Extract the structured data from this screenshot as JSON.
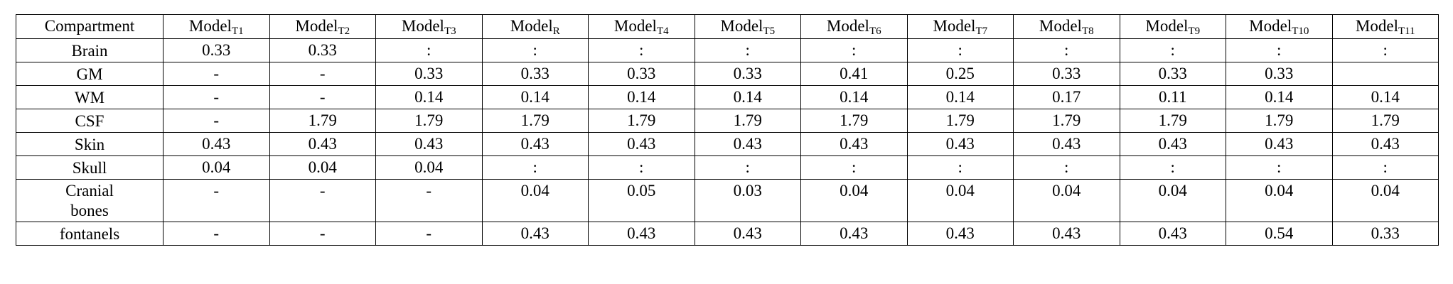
{
  "header": [
    {
      "base": "Compartment"
    },
    {
      "base": "Model",
      "sub": "T1"
    },
    {
      "base": "Model",
      "sub": "T2"
    },
    {
      "base": "Model",
      "sub": "T3"
    },
    {
      "base": "Model",
      "sub": "R"
    },
    {
      "base": "Model",
      "sub": "T4"
    },
    {
      "base": "Model",
      "sub": "T5"
    },
    {
      "base": "Model",
      "sub": "T6"
    },
    {
      "base": "Model",
      "sub": "T7"
    },
    {
      "base": "Model",
      "sub": "T8"
    },
    {
      "base": "Model",
      "sub": "T9"
    },
    {
      "base": "Model",
      "sub": "T10"
    },
    {
      "base": "Model",
      "sub": "T11"
    }
  ],
  "rows": [
    {
      "label": "Brain",
      "cells": [
        "0.33",
        "0.33",
        ":",
        ":",
        ":",
        ":",
        ":",
        ":",
        ":",
        ":",
        ":",
        ":"
      ]
    },
    {
      "label": "GM",
      "cells": [
        "-",
        "-",
        "0.33",
        "0.33",
        "0.33",
        "0.33",
        "0.41",
        "0.25",
        "0.33",
        "0.33",
        "0.33",
        null
      ]
    },
    {
      "label": "WM",
      "cells": [
        "-",
        "-",
        "0.14",
        "0.14",
        "0.14",
        "0.14",
        "0.14",
        "0.14",
        "0.17",
        "0.11",
        "0.14",
        "0.14"
      ]
    },
    {
      "label": "CSF",
      "cells": [
        "-",
        "1.79",
        "1.79",
        "1.79",
        "1.79",
        "1.79",
        "1.79",
        "1.79",
        "1.79",
        "1.79",
        "1.79",
        "1.79"
      ]
    },
    {
      "label": "Skin",
      "cells": [
        "0.43",
        "0.43",
        "0.43",
        "0.43",
        "0.43",
        "0.43",
        "0.43",
        "0.43",
        "0.43",
        "0.43",
        "0.43",
        "0.43"
      ]
    },
    {
      "label": "Skull",
      "cells": [
        "0.04",
        "0.04",
        "0.04",
        ":",
        ":",
        ":",
        ":",
        ":",
        ":",
        ":",
        ":",
        ":"
      ]
    },
    {
      "label": "Cranial bones",
      "cells": [
        "-",
        "-",
        "-",
        "0.04",
        "0.05",
        "0.03",
        "0.04",
        "0.04",
        "0.04",
        "0.04",
        "0.04",
        "0.04"
      ]
    },
    {
      "label": "fontanels",
      "cells": [
        "-",
        "-",
        "-",
        "0.43",
        "0.43",
        "0.43",
        "0.43",
        "0.43",
        "0.43",
        "0.43",
        "0.54",
        "0.33"
      ]
    }
  ]
}
